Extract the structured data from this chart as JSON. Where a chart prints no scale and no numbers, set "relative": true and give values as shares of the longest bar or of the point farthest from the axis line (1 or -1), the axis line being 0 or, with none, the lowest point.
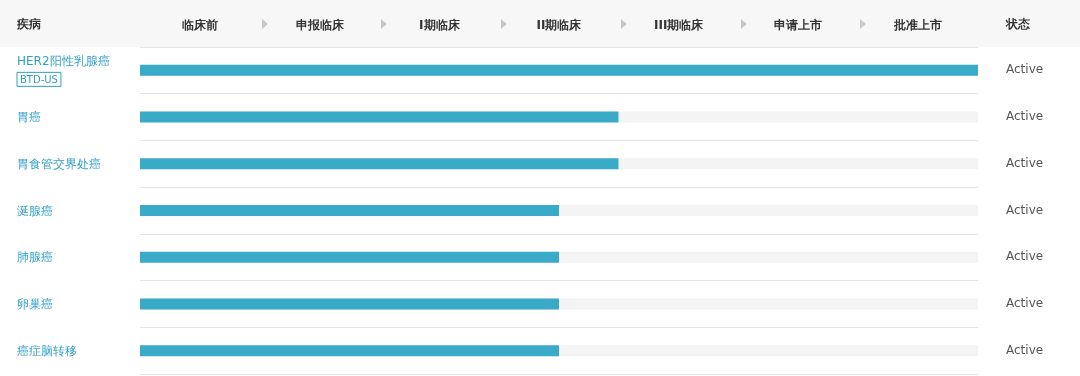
{
  "chart_data": {
    "type": "bar",
    "orientation": "horizontal",
    "relative": true,
    "ylabel": "疾病",
    "y2label": "状态",
    "categories": [
      "HER2阳性乳腺癌\nBTD-US",
      "胃癌",
      "胃食管交界处癌",
      "涎腺癌",
      "肺腺癌",
      "卵巢癌",
      "癌症脑转移"
    ],
    "values": [
      1,
      0.571,
      0.571,
      0.5,
      0.5,
      0.5,
      0.5
    ],
    "color": "#3aaac9",
    "annotations": [
      "Active",
      "Active",
      "Active",
      "Active",
      "Active",
      "Active",
      "Active",
      "临床前",
      "申报临床",
      "I期临床",
      "II期临床",
      "III期临床",
      "申请上市",
      "批准上市"
    ],
    "grid": "y"
  }
}
